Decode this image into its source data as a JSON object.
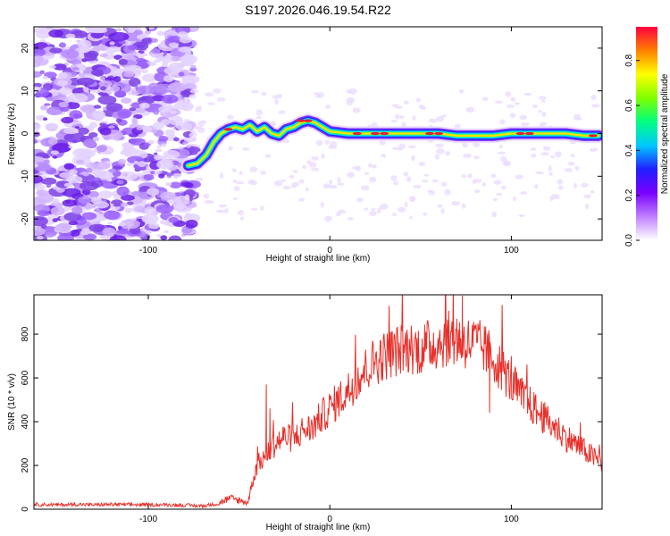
{
  "figure_title": "S197.2026.046.19.54.R22",
  "colors": {
    "snr_line": "#e8302a",
    "track_core": "#e0203a",
    "noise": "#7b3fe4"
  },
  "chart_data": [
    {
      "id": "spectrogram",
      "type": "heatmap",
      "xlabel": "Height of straight line (km)",
      "ylabel": "Frequency (Hz)",
      "xlim": [
        -163,
        150
      ],
      "ylim": [
        -25,
        25
      ],
      "x_ticks": [
        -100,
        0,
        100
      ],
      "y_ticks": [
        -20,
        -10,
        0,
        10,
        20
      ],
      "colorbar": {
        "label": "Normalized spectral amplitude",
        "range": [
          0,
          0.95
        ],
        "ticks": [
          "0.0",
          "0.2",
          "0.4",
          "0.6",
          "0.8"
        ],
        "colormap": [
          "#ffffff",
          "#c080ff",
          "#7a00ff",
          "#2020ff",
          "#00c8ff",
          "#00ff80",
          "#80ff00",
          "#ffff00",
          "#ff8000",
          "#ff0040"
        ]
      },
      "track": {
        "x": [
          -78,
          -73,
          -68,
          -64,
          -60,
          -56,
          -52,
          -48,
          -44,
          -40,
          -36,
          -32,
          -28,
          -24,
          -20,
          -16,
          -12,
          -8,
          -4,
          0,
          10,
          20,
          30,
          40,
          50,
          60,
          70,
          80,
          90,
          100,
          110,
          120,
          130,
          140,
          148
        ],
        "y": [
          -7.5,
          -7.0,
          -5.0,
          -2.0,
          0.0,
          1.0,
          1.5,
          1.0,
          2.0,
          0.5,
          1.5,
          0.0,
          -0.5,
          1.0,
          1.5,
          2.5,
          3.0,
          2.5,
          1.5,
          0.5,
          0.0,
          0.0,
          0.0,
          0.0,
          0.0,
          0.0,
          -0.5,
          -0.5,
          -0.5,
          0.0,
          0.0,
          0.0,
          0.0,
          -0.5,
          -0.5
        ]
      },
      "noise_x_range": [
        -163,
        -75
      ]
    },
    {
      "id": "snr",
      "type": "line",
      "xlabel": "Height of straight line (km)",
      "ylabel": "SNR (10 * v/v)",
      "xlim": [
        -163,
        150
      ],
      "ylim": [
        0,
        980
      ],
      "x_ticks": [
        -100,
        0,
        100
      ],
      "y_ticks": [
        0,
        200,
        400,
        600,
        800
      ],
      "series": [
        {
          "x": [
            -163,
            -150,
            -140,
            -130,
            -120,
            -110,
            -100,
            -90,
            -80,
            -70,
            -62,
            -58,
            -55,
            -50,
            -45,
            -43,
            -40,
            -35,
            -30,
            -25,
            -20,
            -15,
            -10,
            -5,
            0,
            5,
            10,
            15,
            20,
            25,
            30,
            35,
            40,
            45,
            50,
            55,
            60,
            65,
            70,
            75,
            80,
            85,
            90,
            95,
            100,
            105,
            110,
            115,
            120,
            125,
            130,
            135,
            140,
            145,
            150
          ],
          "y": [
            22,
            20,
            22,
            20,
            22,
            21,
            20,
            20,
            18,
            15,
            25,
            40,
            50,
            40,
            30,
            120,
            200,
            250,
            300,
            330,
            320,
            360,
            370,
            420,
            460,
            500,
            540,
            600,
            640,
            680,
            700,
            720,
            730,
            740,
            730,
            750,
            760,
            780,
            770,
            760,
            760,
            730,
            690,
            640,
            580,
            520,
            480,
            440,
            400,
            370,
            330,
            300,
            270,
            240,
            210
          ]
        }
      ]
    }
  ]
}
